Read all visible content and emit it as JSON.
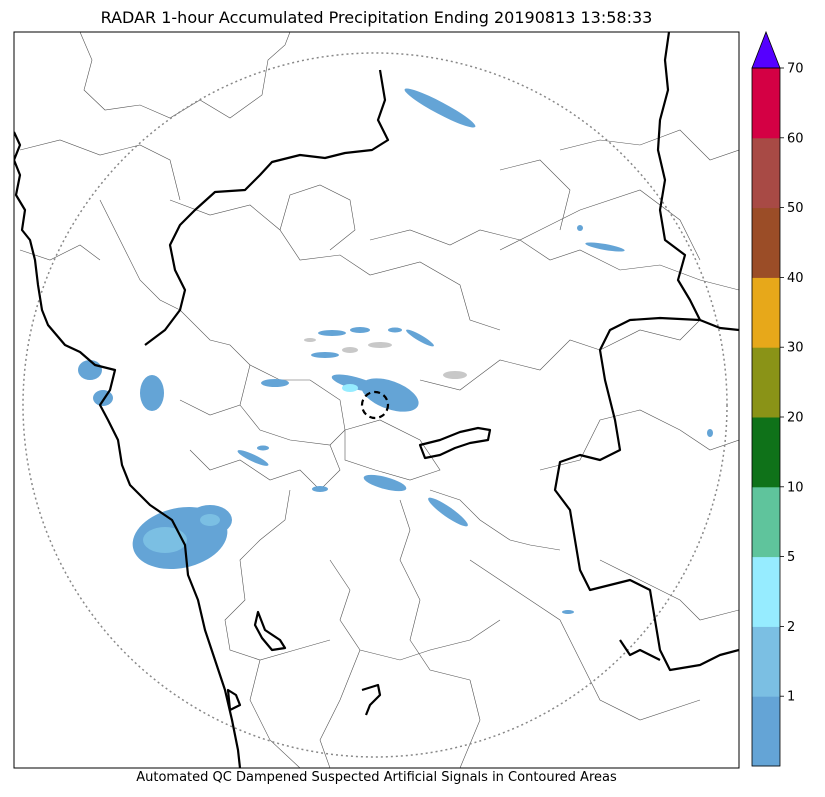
{
  "title": "RADAR 1-hour Accumulated Precipitation Ending 20190813 13:58:33",
  "footer": "Automated QC Dampened Suspected Artificial Signals in Contoured Areas",
  "colorbar": {
    "bins": [
      {
        "label": "",
        "color": "#64a4d6"
      },
      {
        "label": "1",
        "color": "#7bbfe3"
      },
      {
        "label": "2",
        "color": "#96ecff"
      },
      {
        "label": "5",
        "color": "#5fc49c"
      },
      {
        "label": "10",
        "color": "#0f7219"
      },
      {
        "label": "20",
        "color": "#8a9317"
      },
      {
        "label": "30",
        "color": "#e7a81a"
      },
      {
        "label": "40",
        "color": "#9b4d27"
      },
      {
        "label": "50",
        "color": "#a84a45"
      },
      {
        "label": "60",
        "color": "#d40044"
      },
      {
        "label": "70",
        "color": ""
      }
    ],
    "extend_color": "#5500ff"
  },
  "colors": {
    "coastline": "#000000",
    "boundary": "#555555",
    "range_ring": "#888888",
    "rain_light": "#64a4d6",
    "rain_medium": "#7bbfe3",
    "rain_heavy": "#96ecff",
    "clutter": "#c8c8c8"
  }
}
